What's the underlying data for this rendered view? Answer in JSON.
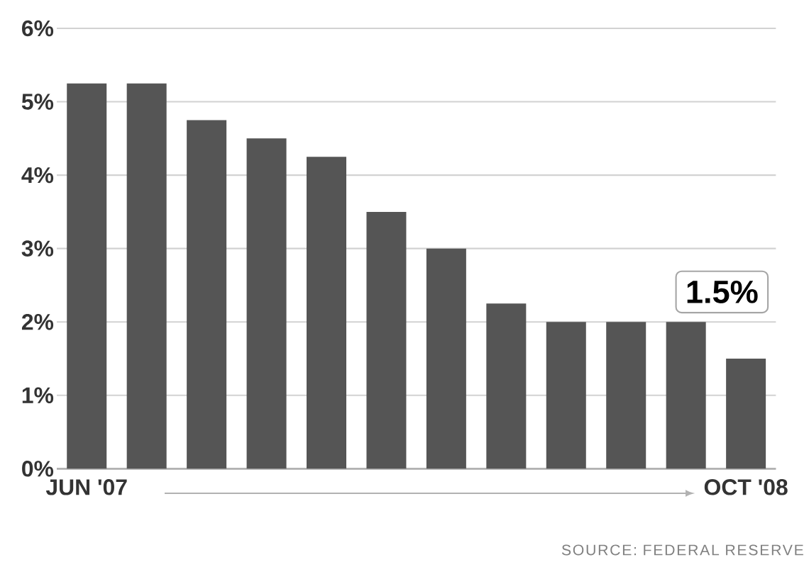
{
  "chart_data": {
    "type": "bar",
    "categories": [
      "JUN '07",
      null,
      null,
      null,
      null,
      null,
      null,
      null,
      null,
      null,
      null,
      "OCT '08"
    ],
    "values": [
      5.25,
      5.25,
      4.75,
      4.5,
      4.25,
      3.5,
      3.0,
      2.25,
      2.0,
      2.0,
      2.0,
      1.5
    ],
    "color": "#555555",
    "ylim": [
      0,
      6
    ],
    "yticks": [
      {
        "value": 0,
        "label": "0%"
      },
      {
        "value": 1,
        "label": "1%"
      },
      {
        "value": 2,
        "label": "2%"
      },
      {
        "value": 3,
        "label": "3%"
      },
      {
        "value": 4,
        "label": "4%"
      },
      {
        "value": 5,
        "label": "5%"
      },
      {
        "value": 6,
        "label": "6%"
      }
    ],
    "grid": "y",
    "annotations": [
      {
        "text": "1.5%",
        "x": "OCT '08",
        "y": 1.5
      },
      "SOURCE: FEDERAL RESERVE"
    ]
  }
}
